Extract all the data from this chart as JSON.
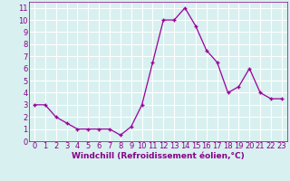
{
  "x": [
    0,
    1,
    2,
    3,
    4,
    5,
    6,
    7,
    8,
    9,
    10,
    11,
    12,
    13,
    14,
    15,
    16,
    17,
    18,
    19,
    20,
    21,
    22,
    23
  ],
  "y": [
    3.0,
    3.0,
    2.0,
    1.5,
    1.0,
    1.0,
    1.0,
    1.0,
    0.5,
    1.2,
    3.0,
    6.5,
    10.0,
    10.0,
    11.0,
    9.5,
    7.5,
    6.5,
    4.0,
    4.5,
    6.0,
    4.0,
    3.5,
    3.5
  ],
  "line_color": "#990099",
  "marker": "+",
  "marker_size": 3,
  "xlabel": "Windchill (Refroidissement éolien,°C)",
  "xlim": [
    -0.5,
    23.5
  ],
  "ylim": [
    0,
    11.5
  ],
  "yticks": [
    0,
    1,
    2,
    3,
    4,
    5,
    6,
    7,
    8,
    9,
    10,
    11
  ],
  "xticks": [
    0,
    1,
    2,
    3,
    4,
    5,
    6,
    7,
    8,
    9,
    10,
    11,
    12,
    13,
    14,
    15,
    16,
    17,
    18,
    19,
    20,
    21,
    22,
    23
  ],
  "bg_color": "#d8f0f0",
  "grid_color": "#ffffff",
  "tick_label_color": "#880088",
  "xlabel_color": "#880088",
  "xlabel_fontsize": 6.5,
  "tick_fontsize": 6.0
}
